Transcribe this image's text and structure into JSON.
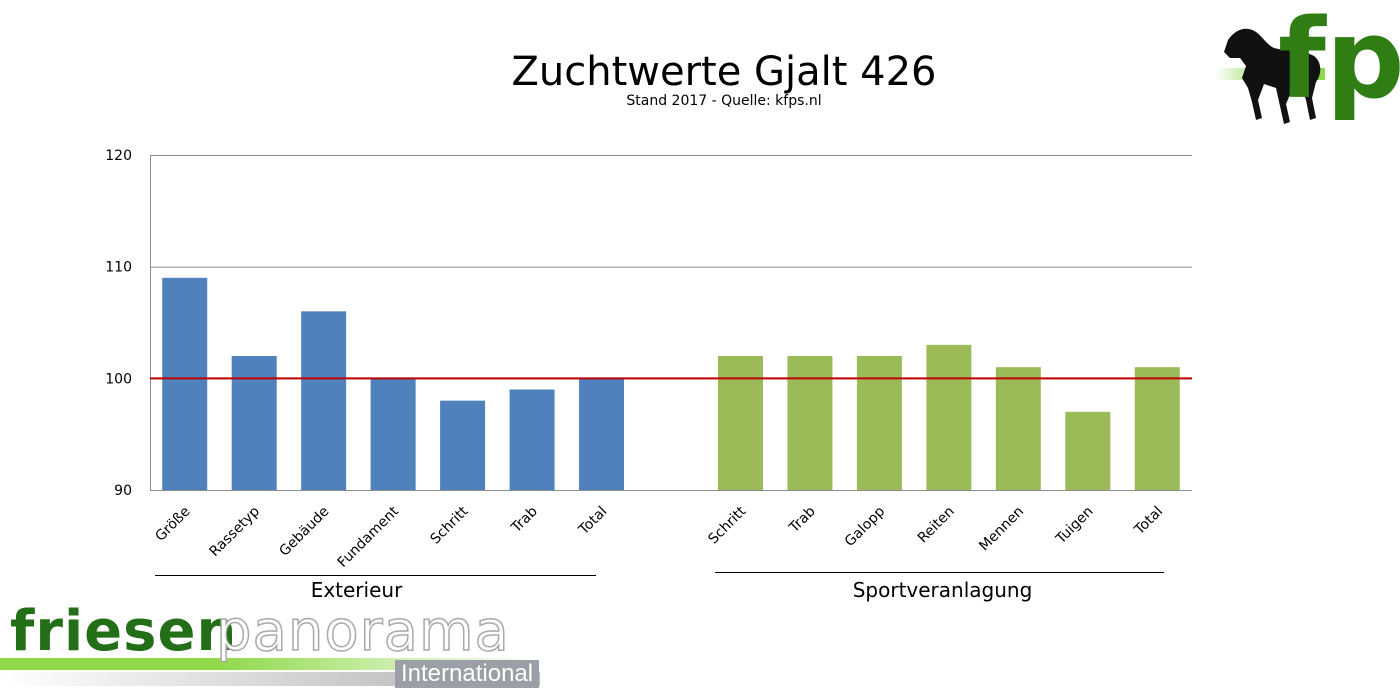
{
  "chart_data": {
    "type": "bar",
    "title": "Zuchtwerte Gjalt 426",
    "subtitle": "Stand 2017 - Quelle: kfps.nl",
    "ylim": [
      90,
      120
    ],
    "yticks": [
      90,
      100,
      110,
      120
    ],
    "reference_line": 100,
    "colors": {
      "exterieur": "#4f81bd",
      "sport": "#9bbb59",
      "reference": "#c00000"
    },
    "groups": [
      {
        "name": "Exterieur",
        "categories": [
          "Größe",
          "Rassetyp",
          "Gebäude",
          "Fundament",
          "Schritt",
          "Trab",
          "Total"
        ],
        "values": [
          109,
          102,
          106,
          100,
          98,
          99,
          100
        ]
      },
      {
        "name": "Sportveranlagung",
        "categories": [
          "Schritt",
          "Trab",
          "Galopp",
          "Reiten",
          "Mennen",
          "Tuigen",
          "Total"
        ],
        "values": [
          102,
          102,
          102,
          103,
          101,
          97,
          101
        ]
      }
    ],
    "grid": true
  },
  "logos": {
    "corner": "fp",
    "brand_word_1": "friesen",
    "brand_word_2": "panorama",
    "brand_word_3": "International"
  }
}
